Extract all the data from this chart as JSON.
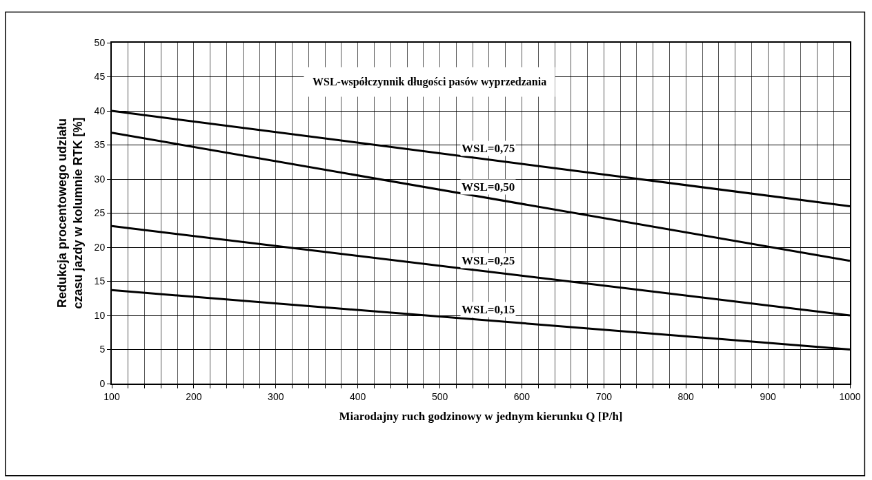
{
  "chart_data": {
    "type": "line",
    "xlabel": "Miarodajny ruch godzinowy w jednym kierunku Q [P/h]",
    "ylabel": "Redukcja procentowego udziału\nczasu jazdy w kolumnie RTK [%]",
    "x": [
      100,
      1000
    ],
    "series": [
      {
        "name": "WSL=0,75",
        "color": "#000000",
        "values": [
          40,
          26
        ]
      },
      {
        "name": "WSL=0,50",
        "color": "#000000",
        "values": [
          36.8,
          18
        ]
      },
      {
        "name": "WSL=0,25",
        "color": "#000000",
        "values": [
          23.1,
          10
        ]
      },
      {
        "name": "WSL=0,15",
        "color": "#000000",
        "values": [
          13.7,
          5
        ]
      }
    ],
    "annotations": [
      "WSL-współczynnik długości pasów wyprzedzania"
    ],
    "xlim": [
      100,
      1000
    ],
    "xticks": [
      100,
      {
        "value": 120,
        "label": null
      },
      {
        "value": 140,
        "label": null
      },
      {
        "value": 160,
        "label": null
      },
      {
        "value": 180,
        "label": null
      },
      200,
      {
        "value": 220,
        "label": null
      },
      {
        "value": 240,
        "label": null
      },
      {
        "value": 260,
        "label": null
      },
      {
        "value": 280,
        "label": null
      },
      300,
      {
        "value": 320,
        "label": null
      },
      {
        "value": 340,
        "label": null
      },
      {
        "value": 360,
        "label": null
      },
      {
        "value": 380,
        "label": null
      },
      400,
      {
        "value": 420,
        "label": null
      },
      {
        "value": 440,
        "label": null
      },
      {
        "value": 460,
        "label": null
      },
      {
        "value": 480,
        "label": null
      },
      500,
      {
        "value": 520,
        "label": null
      },
      {
        "value": 540,
        "label": null
      },
      {
        "value": 560,
        "label": null
      },
      {
        "value": 580,
        "label": null
      },
      600,
      {
        "value": 620,
        "label": null
      },
      {
        "value": 640,
        "label": null
      },
      {
        "value": 660,
        "label": null
      },
      {
        "value": 680,
        "label": null
      },
      700,
      {
        "value": 720,
        "label": null
      },
      {
        "value": 740,
        "label": null
      },
      {
        "value": 760,
        "label": null
      },
      {
        "value": 780,
        "label": null
      },
      800,
      {
        "value": 820,
        "label": null
      },
      {
        "value": 840,
        "label": null
      },
      {
        "value": 860,
        "label": null
      },
      {
        "value": 880,
        "label": null
      },
      900,
      {
        "value": 920,
        "label": null
      },
      {
        "value": 940,
        "label": null
      },
      {
        "value": 960,
        "label": null
      },
      {
        "value": 980,
        "label": null
      },
      1000
    ],
    "ylim": [
      0,
      50
    ],
    "yticks": [
      0,
      5,
      10,
      15,
      20,
      25,
      30,
      35,
      40,
      45,
      50
    ],
    "grid": true,
    "legend": false,
    "marker": "none",
    "line_style": "solid"
  }
}
